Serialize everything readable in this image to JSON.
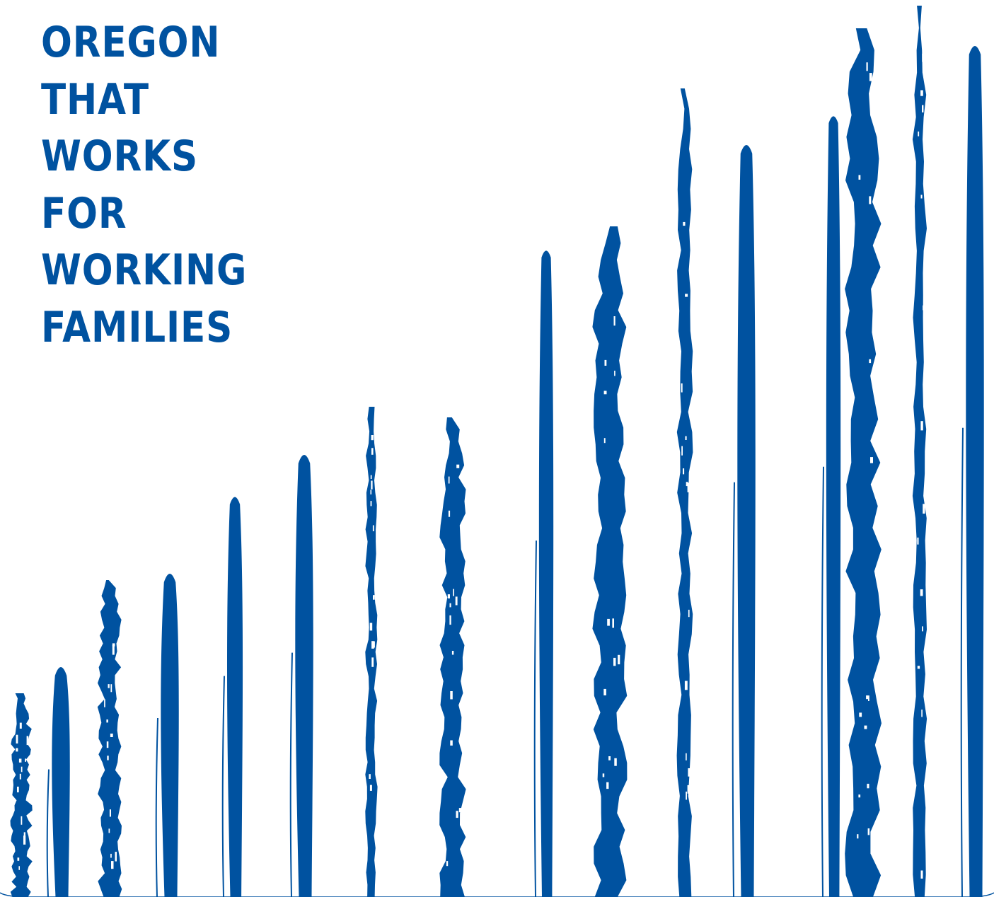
{
  "headline": {
    "lines": [
      "OREGON",
      "THAT",
      "WORKS",
      "FOR",
      "WORKING",
      "FAMILIES"
    ],
    "color": "#0052a0"
  },
  "graphic": {
    "icon": "rising-brush-strokes-icon",
    "color": "#0052a0",
    "stroke_count": 17
  }
}
